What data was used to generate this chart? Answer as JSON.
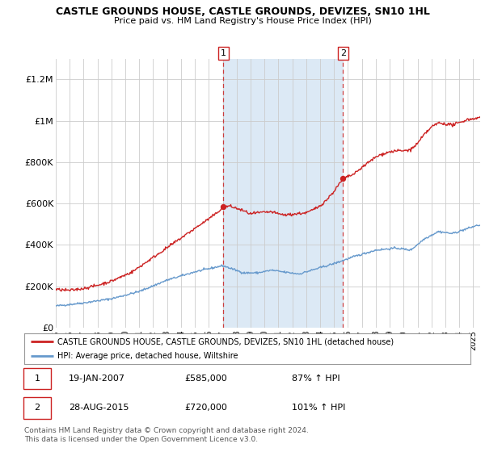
{
  "title": "CASTLE GROUNDS HOUSE, CASTLE GROUNDS, DEVIZES, SN10 1HL",
  "subtitle": "Price paid vs. HM Land Registry's House Price Index (HPI)",
  "ylim": [
    0,
    1300000
  ],
  "yticks": [
    0,
    200000,
    400000,
    600000,
    800000,
    1000000,
    1200000
  ],
  "ytick_labels": [
    "£0",
    "£200K",
    "£400K",
    "£600K",
    "£800K",
    "£1M",
    "£1.2M"
  ],
  "xlim_start": 1995.0,
  "xlim_end": 2025.5,
  "sale1_date": 2007.05,
  "sale1_price": 585000,
  "sale1_label": "1",
  "sale2_date": 2015.65,
  "sale2_price": 720000,
  "sale2_label": "2",
  "bg_band_color": "#dce9f5",
  "grid_color": "#cccccc",
  "hpi_color": "#6699cc",
  "price_color": "#cc2222",
  "sale_dot_color": "#cc2222",
  "legend_house_label": "CASTLE GROUNDS HOUSE, CASTLE GROUNDS, DEVIZES, SN10 1HL (detached house)",
  "legend_hpi_label": "HPI: Average price, detached house, Wiltshire",
  "annotation1_date": "19-JAN-2007",
  "annotation1_price": "£585,000",
  "annotation1_hpi": "87% ↑ HPI",
  "annotation2_date": "28-AUG-2015",
  "annotation2_price": "£720,000",
  "annotation2_hpi": "101% ↑ HPI",
  "footnote": "Contains HM Land Registry data © Crown copyright and database right 2024.\nThis data is licensed under the Open Government Licence v3.0."
}
